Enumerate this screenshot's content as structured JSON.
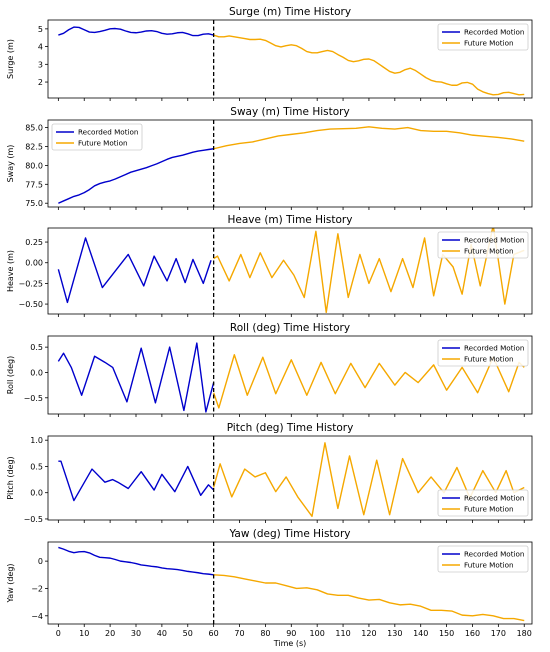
{
  "figure": {
    "xlabel": "Time (s)"
  },
  "chart_data": [
    {
      "type": "line",
      "title": "Surge (m) Time History",
      "ylabel": "Surge (m)",
      "xlim": [
        -4,
        183
      ],
      "ylim": [
        1.1,
        5.5
      ],
      "xticks": [
        0,
        10,
        20,
        30,
        40,
        50,
        60,
        70,
        80,
        90,
        100,
        110,
        120,
        130,
        140,
        150,
        160,
        170,
        180
      ],
      "yticks": [
        2,
        3,
        4,
        5
      ],
      "ytick_labels": [
        "2",
        "3",
        "4",
        "5"
      ],
      "legend": "top-right",
      "divider_x": 60,
      "series": [
        {
          "name": "Recorded Motion",
          "color": "#0000cc",
          "x": [
            0,
            2,
            4,
            6,
            8,
            10,
            12,
            14,
            16,
            18,
            20,
            22,
            24,
            26,
            28,
            30,
            32,
            34,
            36,
            38,
            40,
            42,
            44,
            46,
            48,
            50,
            52,
            54,
            56,
            58,
            60
          ],
          "y": [
            4.65,
            4.75,
            4.95,
            5.1,
            5.08,
            4.95,
            4.82,
            4.8,
            4.85,
            4.92,
            5.0,
            5.02,
            4.98,
            4.88,
            4.8,
            4.78,
            4.82,
            4.88,
            4.9,
            4.85,
            4.75,
            4.7,
            4.72,
            4.78,
            4.8,
            4.72,
            4.62,
            4.62,
            4.7,
            4.72,
            4.65
          ]
        },
        {
          "name": "Future Motion",
          "color": "#f5a800",
          "x": [
            60,
            62,
            64,
            66,
            68,
            70,
            72,
            74,
            76,
            78,
            80,
            82,
            84,
            86,
            88,
            90,
            92,
            94,
            96,
            98,
            100,
            102,
            104,
            106,
            108,
            110,
            112,
            114,
            116,
            118,
            120,
            122,
            124,
            126,
            128,
            130,
            132,
            134,
            136,
            138,
            140,
            142,
            144,
            146,
            148,
            150,
            152,
            154,
            156,
            158,
            160,
            162,
            164,
            166,
            168,
            170,
            172,
            174,
            176,
            178,
            180
          ],
          "y": [
            4.65,
            4.55,
            4.55,
            4.6,
            4.55,
            4.5,
            4.45,
            4.4,
            4.4,
            4.42,
            4.35,
            4.2,
            4.05,
            3.98,
            4.05,
            4.1,
            4.05,
            3.9,
            3.72,
            3.65,
            3.65,
            3.72,
            3.78,
            3.72,
            3.55,
            3.4,
            3.22,
            3.15,
            3.2,
            3.28,
            3.3,
            3.2,
            3.0,
            2.8,
            2.6,
            2.5,
            2.55,
            2.7,
            2.78,
            2.65,
            2.45,
            2.25,
            2.1,
            2.02,
            2.0,
            1.9,
            1.82,
            1.82,
            1.95,
            1.98,
            1.88,
            1.6,
            1.45,
            1.35,
            1.28,
            1.3,
            1.4,
            1.42,
            1.35,
            1.28,
            1.3
          ]
        }
      ]
    },
    {
      "type": "line",
      "title": "Sway (m) Time History",
      "ylabel": "Sway (m)",
      "xlim": [
        -4,
        183
      ],
      "ylim": [
        74.5,
        86.0
      ],
      "xticks": [
        0,
        10,
        20,
        30,
        40,
        50,
        60,
        70,
        80,
        90,
        100,
        110,
        120,
        130,
        140,
        150,
        160,
        170,
        180
      ],
      "yticks": [
        75,
        77.5,
        80,
        82.5,
        85
      ],
      "ytick_labels": [
        "75.0",
        "77.5",
        "80.0",
        "82.5",
        "85.0"
      ],
      "legend": "top-left",
      "divider_x": 60,
      "series": [
        {
          "name": "Recorded Motion",
          "color": "#0000cc",
          "x": [
            0,
            2,
            4,
            6,
            8,
            10,
            12,
            14,
            16,
            18,
            20,
            22,
            24,
            26,
            28,
            30,
            32,
            34,
            36,
            38,
            40,
            42,
            44,
            46,
            48,
            50,
            52,
            54,
            56,
            58,
            60
          ],
          "y": [
            75.0,
            75.3,
            75.6,
            75.9,
            76.1,
            76.4,
            76.8,
            77.3,
            77.6,
            77.8,
            77.95,
            78.2,
            78.5,
            78.8,
            79.1,
            79.3,
            79.5,
            79.7,
            79.95,
            80.2,
            80.5,
            80.8,
            81.05,
            81.2,
            81.35,
            81.55,
            81.75,
            81.9,
            82.0,
            82.1,
            82.2
          ]
        },
        {
          "name": "Future Motion",
          "color": "#f5a800",
          "x": [
            60,
            65,
            70,
            75,
            80,
            85,
            90,
            95,
            100,
            105,
            110,
            115,
            120,
            125,
            130,
            135,
            140,
            145,
            150,
            155,
            160,
            165,
            170,
            175,
            180
          ],
          "y": [
            82.2,
            82.6,
            82.9,
            83.1,
            83.5,
            83.9,
            84.1,
            84.3,
            84.6,
            84.8,
            84.85,
            84.9,
            85.1,
            84.9,
            84.8,
            85.0,
            84.6,
            84.5,
            84.5,
            84.3,
            84.0,
            83.85,
            83.7,
            83.5,
            83.2
          ]
        }
      ]
    },
    {
      "type": "line",
      "title": "Heave (m) Time History",
      "ylabel": "Heave (m)",
      "xlim": [
        -4,
        183
      ],
      "ylim": [
        -0.62,
        0.42
      ],
      "xticks": [
        0,
        10,
        20,
        30,
        40,
        50,
        60,
        70,
        80,
        90,
        100,
        110,
        120,
        130,
        140,
        150,
        160,
        170,
        180
      ],
      "yticks": [
        -0.5,
        -0.25,
        0,
        0.25
      ],
      "ytick_labels": [
        "−0.50",
        "−0.25",
        "0.00",
        "0.25"
      ],
      "legend": "top-right",
      "divider_x": 60,
      "series": [
        {
          "name": "Recorded Motion",
          "color": "#0000cc",
          "x": [
            0,
            3.5,
            10.5,
            17,
            27,
            33,
            37,
            42,
            45.5,
            49,
            52,
            56,
            59
          ],
          "y": [
            -0.08,
            -0.48,
            0.3,
            -0.3,
            0.1,
            -0.28,
            0.08,
            -0.22,
            0.05,
            -0.24,
            0.04,
            -0.25,
            0.03
          ]
        },
        {
          "name": "Future Motion",
          "color": "#f5a800",
          "x": [
            60,
            61.5,
            66,
            70.5,
            74,
            78,
            82.5,
            87,
            91,
            95,
            99.5,
            103.5,
            108,
            112,
            116.5,
            120,
            124,
            128.5,
            133,
            137,
            141.5,
            145,
            148.5,
            152.5,
            156,
            159.5,
            163,
            168,
            172.5,
            176,
            180
          ],
          "y": [
            0.05,
            0.08,
            -0.22,
            0.1,
            -0.18,
            0.12,
            -0.18,
            0.03,
            -0.15,
            -0.42,
            0.38,
            -0.6,
            0.35,
            -0.42,
            0.1,
            -0.25,
            0.05,
            -0.35,
            0.05,
            -0.3,
            0.3,
            -0.4,
            0.1,
            -0.05,
            -0.38,
            0.22,
            -0.28,
            0.45,
            -0.5,
            0.1,
            0.15
          ]
        }
      ]
    },
    {
      "type": "line",
      "title": "Roll (deg) Time History",
      "ylabel": "Roll (deg)",
      "xlim": [
        -4,
        183
      ],
      "ylim": [
        -0.82,
        0.72
      ],
      "xticks": [
        0,
        10,
        20,
        30,
        40,
        50,
        60,
        70,
        80,
        90,
        100,
        110,
        120,
        130,
        140,
        150,
        160,
        170,
        180
      ],
      "yticks": [
        -0.5,
        0,
        0.5
      ],
      "ytick_labels": [
        "−0.5",
        "0.0",
        "0.5"
      ],
      "legend": "top-right",
      "divider_x": 60,
      "series": [
        {
          "name": "Recorded Motion",
          "color": "#0000cc",
          "x": [
            0,
            2,
            5,
            9,
            14,
            18,
            21,
            26.5,
            32,
            37.5,
            43,
            48.5,
            53.5,
            57,
            60
          ],
          "y": [
            0.22,
            0.38,
            0.1,
            -0.45,
            0.32,
            0.2,
            0.1,
            -0.58,
            0.48,
            -0.6,
            0.5,
            -0.75,
            0.58,
            -0.78,
            -0.2
          ]
        },
        {
          "name": "Future Motion",
          "color": "#f5a800",
          "x": [
            60,
            62,
            68,
            73,
            79,
            84,
            90,
            96,
            101.5,
            107,
            113,
            118.5,
            124,
            130,
            134,
            139,
            145,
            150,
            156,
            162,
            168,
            174,
            178,
            180
          ],
          "y": [
            -0.4,
            -0.7,
            0.35,
            -0.45,
            0.3,
            -0.42,
            0.25,
            -0.45,
            0.2,
            -0.42,
            0.18,
            -0.3,
            0.18,
            -0.25,
            0.0,
            -0.2,
            0.15,
            -0.35,
            0.1,
            -0.4,
            0.3,
            -0.38,
            0.2,
            0.1
          ]
        }
      ]
    },
    {
      "type": "line",
      "title": "Pitch (deg) Time History",
      "ylabel": "Pitch (deg)",
      "xlim": [
        -4,
        183
      ],
      "ylim": [
        -0.52,
        1.08
      ],
      "xticks": [
        0,
        10,
        20,
        30,
        40,
        50,
        60,
        70,
        80,
        90,
        100,
        110,
        120,
        130,
        140,
        150,
        160,
        170,
        180
      ],
      "yticks": [
        -0.5,
        0,
        0.5,
        1
      ],
      "ytick_labels": [
        "−0.5",
        "0.0",
        "0.5",
        "1.0"
      ],
      "legend": "bottom-right",
      "divider_x": 60,
      "series": [
        {
          "name": "Recorded Motion",
          "color": "#0000cc",
          "x": [
            0,
            1,
            6,
            13,
            18,
            21,
            23,
            27,
            32,
            37,
            40,
            45,
            50,
            55,
            58,
            60
          ],
          "y": [
            0.6,
            0.6,
            -0.15,
            0.45,
            0.2,
            0.25,
            0.2,
            0.08,
            0.4,
            0.05,
            0.35,
            0.02,
            0.5,
            -0.05,
            0.15,
            0.05
          ]
        },
        {
          "name": "Future Motion",
          "color": "#f5a800",
          "x": [
            60,
            62.5,
            67,
            72,
            76,
            80,
            84,
            88,
            92.5,
            98,
            103,
            108,
            112.5,
            118,
            123,
            128,
            133,
            139,
            144,
            149,
            154,
            159,
            164,
            169,
            173,
            176,
            180
          ],
          "y": [
            0.1,
            0.55,
            -0.08,
            0.45,
            0.3,
            0.38,
            0.02,
            0.3,
            -0.08,
            -0.45,
            0.95,
            -0.3,
            0.7,
            -0.42,
            0.62,
            -0.42,
            0.65,
            0.0,
            0.3,
            0.0,
            0.48,
            -0.1,
            0.42,
            0.0,
            0.42,
            0.0,
            0.1
          ]
        }
      ]
    },
    {
      "type": "line",
      "title": "Yaw (deg) Time History",
      "ylabel": "Yaw (deg)",
      "xlim": [
        -4,
        183
      ],
      "ylim": [
        -4.6,
        1.4
      ],
      "xticks": [
        0,
        10,
        20,
        30,
        40,
        50,
        60,
        70,
        80,
        90,
        100,
        110,
        120,
        130,
        140,
        150,
        160,
        170,
        180
      ],
      "xtick_labels": [
        "0",
        "10",
        "20",
        "30",
        "40",
        "50",
        "60",
        "70",
        "80",
        "90",
        "100",
        "110",
        "120",
        "130",
        "140",
        "150",
        "160",
        "170",
        "180"
      ],
      "yticks": [
        -4,
        -2,
        0
      ],
      "ytick_labels": [
        "−4",
        "−2",
        "0"
      ],
      "legend": "top-right",
      "divider_x": 60,
      "series": [
        {
          "name": "Recorded Motion",
          "color": "#0000cc",
          "x": [
            0,
            2,
            4,
            6,
            8,
            10,
            12,
            14,
            16,
            18,
            20,
            22,
            24,
            26,
            28,
            30,
            32,
            34,
            36,
            38,
            40,
            42,
            44,
            46,
            48,
            50,
            52,
            54,
            56,
            58,
            60
          ],
          "y": [
            1.0,
            0.88,
            0.72,
            0.62,
            0.68,
            0.7,
            0.6,
            0.42,
            0.28,
            0.25,
            0.22,
            0.12,
            0.0,
            -0.05,
            -0.1,
            -0.18,
            -0.28,
            -0.32,
            -0.38,
            -0.42,
            -0.5,
            -0.55,
            -0.58,
            -0.62,
            -0.68,
            -0.75,
            -0.8,
            -0.85,
            -0.92,
            -0.95,
            -1.0
          ]
        },
        {
          "name": "Future Motion",
          "color": "#f5a800",
          "x": [
            60,
            64,
            68,
            72,
            76,
            80,
            84,
            88,
            92,
            96,
            100,
            104,
            108,
            112,
            116,
            120,
            124,
            128,
            132,
            136,
            140,
            144,
            148,
            152,
            156,
            160,
            164,
            168,
            172,
            176,
            180
          ],
          "y": [
            -1.0,
            -1.05,
            -1.15,
            -1.3,
            -1.45,
            -1.6,
            -1.6,
            -1.8,
            -2.0,
            -1.95,
            -2.1,
            -2.4,
            -2.5,
            -2.5,
            -2.7,
            -2.85,
            -2.8,
            -3.05,
            -3.2,
            -3.15,
            -3.3,
            -3.6,
            -3.6,
            -3.65,
            -3.95,
            -4.0,
            -3.9,
            -4.0,
            -4.2,
            -4.2,
            -4.35
          ]
        }
      ]
    }
  ]
}
